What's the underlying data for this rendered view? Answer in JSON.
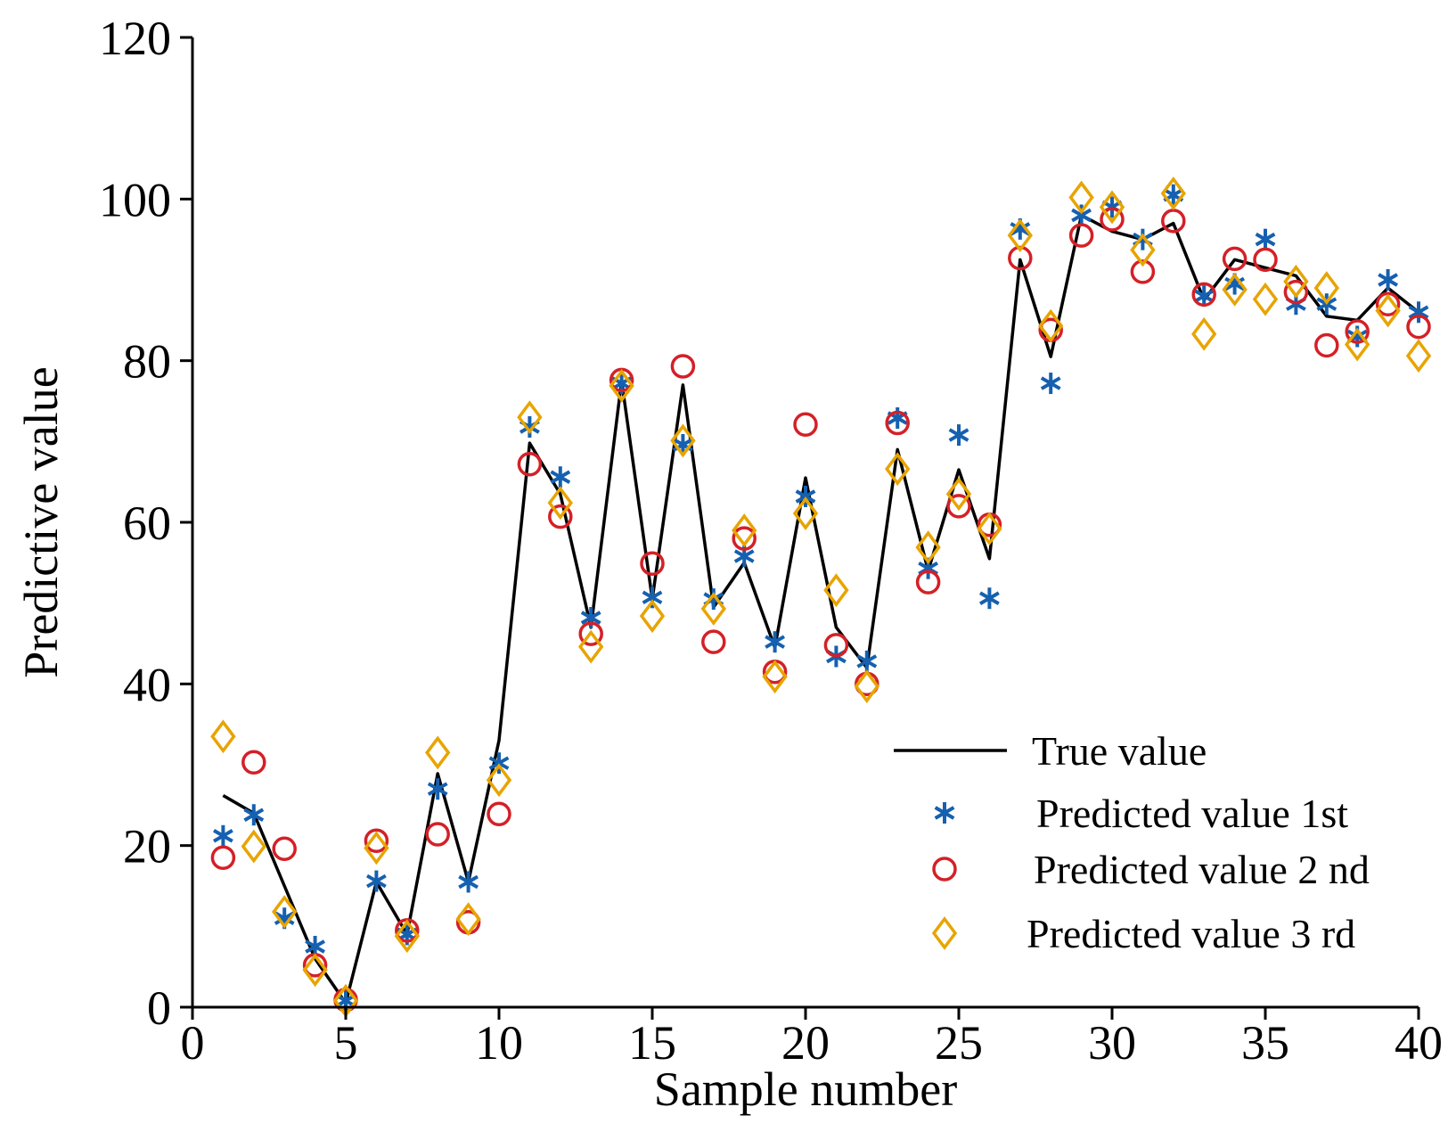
{
  "chart_data": {
    "type": "line",
    "xlabel": "Sample number",
    "ylabel": "Predictive value",
    "xlim": [
      0,
      40
    ],
    "ylim": [
      0,
      120
    ],
    "x_ticks": [
      0,
      5,
      10,
      15,
      20,
      25,
      30,
      35,
      40
    ],
    "y_ticks": [
      0,
      20,
      40,
      60,
      80,
      100,
      120
    ],
    "grid": false,
    "legend_position": "lower-right",
    "x": [
      1,
      2,
      3,
      4,
      5,
      6,
      7,
      8,
      9,
      10,
      11,
      12,
      13,
      14,
      15,
      16,
      17,
      18,
      19,
      20,
      21,
      22,
      23,
      24,
      25,
      26,
      27,
      28,
      29,
      30,
      31,
      32,
      33,
      34,
      35,
      36,
      37,
      38,
      39,
      40
    ],
    "series": [
      {
        "name": "True value",
        "style": "line",
        "color": "#000000",
        "values": [
          26.2,
          24.0,
          15.0,
          6.0,
          0.5,
          15.5,
          9.0,
          28.9,
          15.5,
          33.0,
          69.8,
          63.5,
          47.0,
          77.5,
          50.5,
          77.0,
          49.5,
          55.0,
          44.5,
          65.5,
          47.0,
          42.0,
          69.0,
          54.0,
          66.5,
          55.5,
          92.5,
          80.5,
          98.0,
          96.0,
          95.0,
          97.0,
          87.5,
          92.5,
          91.5,
          90.5,
          85.5,
          85.0,
          89.0,
          86.0
        ]
      },
      {
        "name": "Predicted value 1st",
        "style": "asterisk",
        "color": "#1560B0",
        "values": [
          21.2,
          23.8,
          11.0,
          7.5,
          0.8,
          15.6,
          9.0,
          27.0,
          15.5,
          30.2,
          71.8,
          65.6,
          48.2,
          77.2,
          50.7,
          69.6,
          50.5,
          55.8,
          45.2,
          63.2,
          43.4,
          42.8,
          72.9,
          54.3,
          70.8,
          50.6,
          96.3,
          77.2,
          98.0,
          99.0,
          95.0,
          100.5,
          88.0,
          89.5,
          95.0,
          87.0,
          87.0,
          83.0,
          90.0,
          86.0
        ]
      },
      {
        "name": "Predicted value 2 nd",
        "style": "circle",
        "color": "#D42027",
        "values": [
          18.5,
          30.3,
          19.6,
          5.2,
          0.9,
          20.6,
          9.5,
          21.4,
          10.5,
          23.9,
          67.2,
          60.7,
          46.2,
          77.6,
          54.9,
          79.3,
          45.2,
          58.0,
          41.5,
          72.1,
          44.8,
          40.0,
          72.3,
          52.6,
          62.0,
          59.7,
          92.7,
          83.8,
          95.5,
          97.5,
          91.0,
          97.3,
          88.2,
          92.6,
          92.5,
          88.5,
          81.9,
          83.6,
          87.0,
          84.2
        ]
      },
      {
        "name": "Predicted value 3 rd",
        "style": "diamond",
        "color": "#E8A400",
        "values": [
          33.5,
          19.9,
          11.8,
          4.6,
          0.8,
          19.7,
          8.8,
          31.5,
          10.9,
          28.1,
          73.0,
          62.4,
          44.6,
          76.9,
          48.4,
          70.1,
          49.3,
          59.0,
          40.9,
          61.1,
          51.6,
          39.7,
          66.6,
          56.9,
          63.5,
          59.2,
          95.5,
          84.3,
          100.2,
          99.0,
          93.7,
          100.7,
          83.3,
          88.8,
          87.6,
          89.8,
          89.0,
          82.0,
          86.2,
          80.6
        ]
      }
    ]
  }
}
